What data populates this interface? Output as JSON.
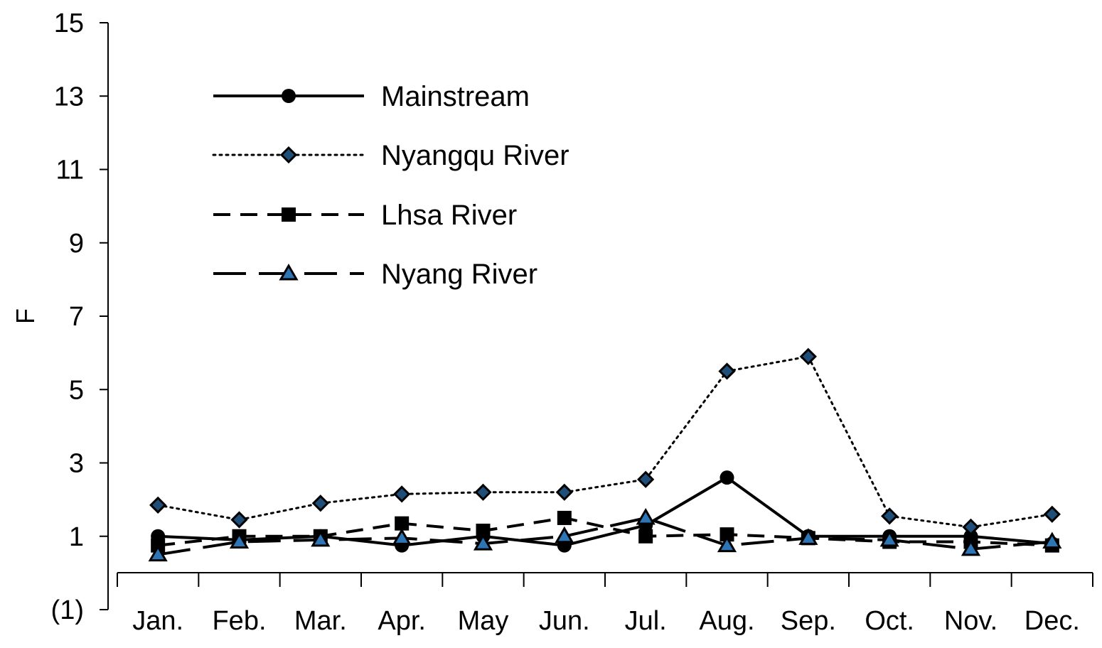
{
  "chart_data": {
    "type": "line",
    "title": "",
    "xlabel": "",
    "ylabel": "F",
    "ylim": [
      -1,
      15
    ],
    "y_ticks": [
      "15",
      "13",
      "11",
      "9",
      "7",
      "5",
      "3",
      "1",
      "(1)"
    ],
    "y_tick_values": [
      15,
      13,
      11,
      9,
      7,
      5,
      3,
      1,
      -1
    ],
    "categories": [
      "Jan.",
      "Feb.",
      "Mar.",
      "Apr.",
      "May",
      "Jun.",
      "Jul.",
      "Aug.",
      "Sep.",
      "Oct.",
      "Nov.",
      "Dec."
    ],
    "grid": false,
    "legend_position": "top-left",
    "series": [
      {
        "name": "Mainstream",
        "values": [
          1.0,
          0.9,
          1.0,
          0.75,
          1.0,
          0.75,
          1.3,
          2.6,
          1.0,
          1.0,
          1.0,
          0.8
        ],
        "line_style": "solid",
        "marker": "circle",
        "color": "#000000"
      },
      {
        "name": "Nyangqu River",
        "values": [
          1.85,
          1.45,
          1.9,
          2.15,
          2.2,
          2.2,
          2.55,
          5.5,
          5.9,
          1.55,
          1.25,
          1.6
        ],
        "line_style": "dotted",
        "marker": "diamond",
        "color": "#000000"
      },
      {
        "name": "Lhsa River",
        "values": [
          0.75,
          1.0,
          1.0,
          1.35,
          1.15,
          1.5,
          1.0,
          1.05,
          0.95,
          0.85,
          0.85,
          0.75
        ],
        "line_style": "dashed",
        "marker": "square",
        "color": "#000000"
      },
      {
        "name": "Nyang River",
        "values": [
          0.5,
          0.85,
          0.9,
          0.95,
          0.8,
          1.0,
          1.5,
          0.75,
          0.95,
          0.9,
          0.65,
          0.85
        ],
        "line_style": "long-dash",
        "marker": "triangle",
        "color": "#000000"
      }
    ]
  }
}
